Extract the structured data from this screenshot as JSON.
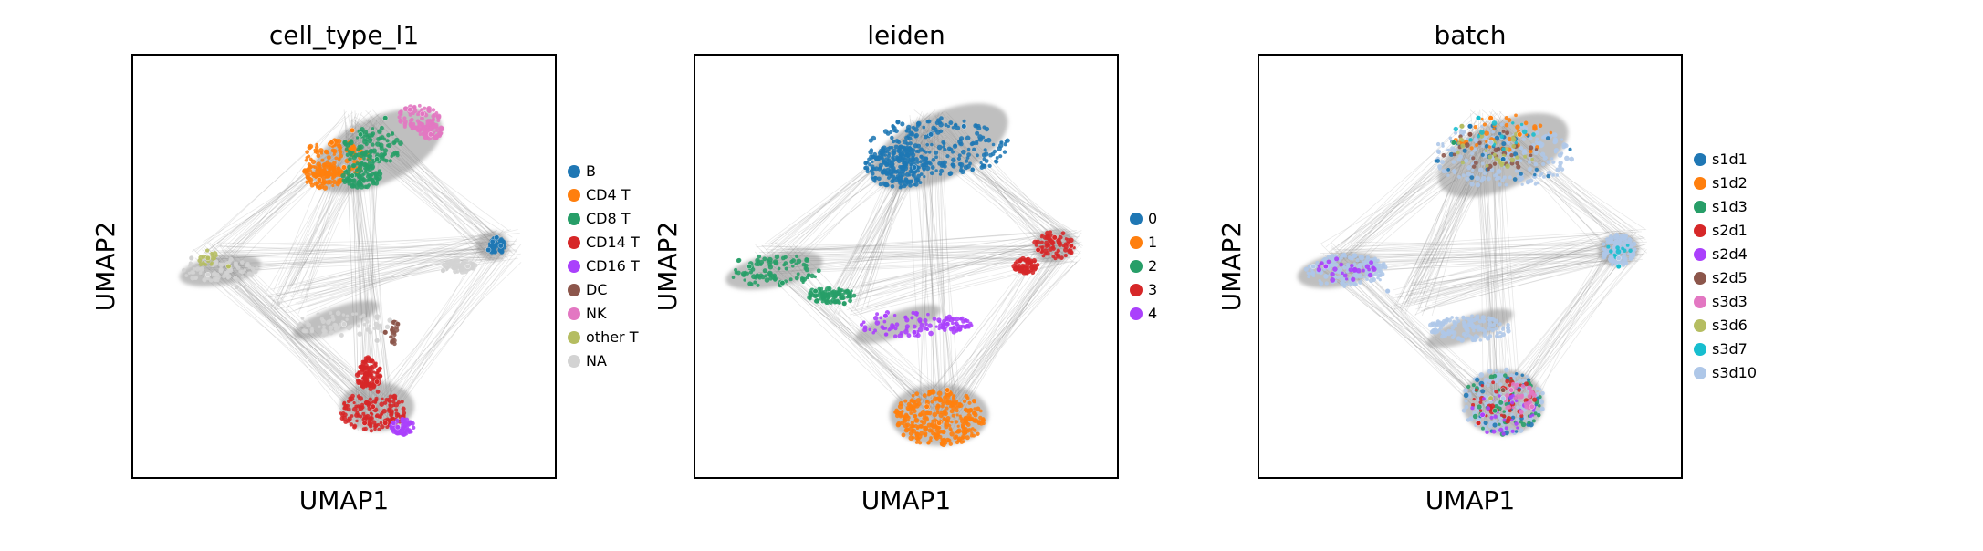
{
  "chart_data": [
    {
      "type": "scatter",
      "title": "cell_type_l1",
      "xlabel": "UMAP1",
      "ylabel": "UMAP2",
      "grid": false,
      "legend_placement": "right",
      "series": [
        {
          "name": "B",
          "color": "#1f77b4",
          "x": [
            0.86,
            0.88,
            0.87,
            0.85
          ],
          "y": [
            0.56,
            0.55,
            0.57,
            0.54
          ]
        },
        {
          "name": "CD4 T",
          "color": "#ff7f0e",
          "x": [
            0.47,
            0.5,
            0.44,
            0.52
          ],
          "y": [
            0.8,
            0.74,
            0.71,
            0.83
          ]
        },
        {
          "name": "CD8 T",
          "color": "#279e68",
          "x": [
            0.54,
            0.58,
            0.52,
            0.6
          ],
          "y": [
            0.82,
            0.76,
            0.72,
            0.86
          ]
        },
        {
          "name": "CD14 T",
          "color": "#d62728",
          "x": [
            0.57,
            0.55,
            0.6,
            0.58
          ],
          "y": [
            0.16,
            0.12,
            0.12,
            0.22
          ]
        },
        {
          "name": "CD16 T",
          "color": "#aa40fc",
          "x": [
            0.62,
            0.63
          ],
          "y": [
            0.12,
            0.11
          ]
        },
        {
          "name": "DC",
          "color": "#8c564b",
          "x": [
            0.6,
            0.63
          ],
          "y": [
            0.34,
            0.36
          ]
        },
        {
          "name": "NK",
          "color": "#e377c2",
          "x": [
            0.66,
            0.69,
            0.71
          ],
          "y": [
            0.88,
            0.87,
            0.82
          ]
        },
        {
          "name": "other T",
          "color": "#b5bd61",
          "x": [
            0.17,
            0.22
          ],
          "y": [
            0.52,
            0.5
          ]
        },
        {
          "name": "NA",
          "color": "#d3d3d3",
          "x": [
            0.13,
            0.17,
            0.24,
            0.34,
            0.5,
            0.58,
            0.74,
            0.8
          ],
          "y": [
            0.52,
            0.48,
            0.45,
            0.41,
            0.36,
            0.32,
            0.49,
            0.5
          ]
        }
      ]
    },
    {
      "type": "scatter",
      "title": "leiden",
      "xlabel": "UMAP1",
      "ylabel": "UMAP2",
      "grid": false,
      "legend_placement": "right",
      "series": [
        {
          "name": "0",
          "color": "#1f77b4",
          "x": [
            0.48,
            0.56,
            0.64,
            0.52
          ],
          "y": [
            0.85,
            0.82,
            0.84,
            0.74
          ]
        },
        {
          "name": "1",
          "color": "#ff7f0e",
          "x": [
            0.55,
            0.58,
            0.6
          ],
          "y": [
            0.16,
            0.12,
            0.2
          ]
        },
        {
          "name": "2",
          "color": "#279e68",
          "x": [
            0.12,
            0.2,
            0.28,
            0.35
          ],
          "y": [
            0.5,
            0.46,
            0.44,
            0.41
          ]
        },
        {
          "name": "3",
          "color": "#d62728",
          "x": [
            0.82,
            0.86,
            0.9
          ],
          "y": [
            0.54,
            0.57,
            0.55
          ]
        },
        {
          "name": "4",
          "color": "#aa40fc",
          "x": [
            0.45,
            0.52,
            0.6
          ],
          "y": [
            0.38,
            0.34,
            0.36
          ]
        }
      ]
    },
    {
      "type": "scatter",
      "title": "batch",
      "xlabel": "UMAP1",
      "ylabel": "UMAP2",
      "grid": false,
      "legend_placement": "right",
      "series": [
        {
          "name": "s1d1",
          "color": "#1f77b4",
          "x": [
            0.5,
            0.58
          ],
          "y": [
            0.84,
            0.76
          ]
        },
        {
          "name": "s1d2",
          "color": "#ff7f0e",
          "x": [
            0.55,
            0.62
          ],
          "y": [
            0.86,
            0.82
          ]
        },
        {
          "name": "s1d3",
          "color": "#279e68",
          "x": [
            0.46,
            0.56
          ],
          "y": [
            0.8,
            0.15
          ]
        },
        {
          "name": "s2d1",
          "color": "#d62728",
          "x": [
            0.52,
            0.6
          ],
          "y": [
            0.12,
            0.2
          ]
        },
        {
          "name": "s2d4",
          "color": "#aa40fc",
          "x": [
            0.15,
            0.53
          ],
          "y": [
            0.5,
            0.14
          ]
        },
        {
          "name": "s2d5",
          "color": "#8c564b",
          "x": [
            0.5,
            0.58
          ],
          "y": [
            0.82,
            0.2
          ]
        },
        {
          "name": "s3d3",
          "color": "#e377c2",
          "x": [
            0.6,
            0.65
          ],
          "y": [
            0.2,
            0.16
          ]
        },
        {
          "name": "s3d6",
          "color": "#b5bd61",
          "x": [
            0.48,
            0.55
          ],
          "y": [
            0.84,
            0.18
          ]
        },
        {
          "name": "s3d7",
          "color": "#17becf",
          "x": [
            0.52,
            0.86
          ],
          "y": [
            0.86,
            0.5
          ]
        },
        {
          "name": "s3d10",
          "color": "#aec7e8",
          "x": [
            0.12,
            0.3,
            0.55,
            0.58,
            0.86
          ],
          "y": [
            0.5,
            0.44,
            0.8,
            0.18,
            0.52
          ]
        }
      ]
    }
  ]
}
